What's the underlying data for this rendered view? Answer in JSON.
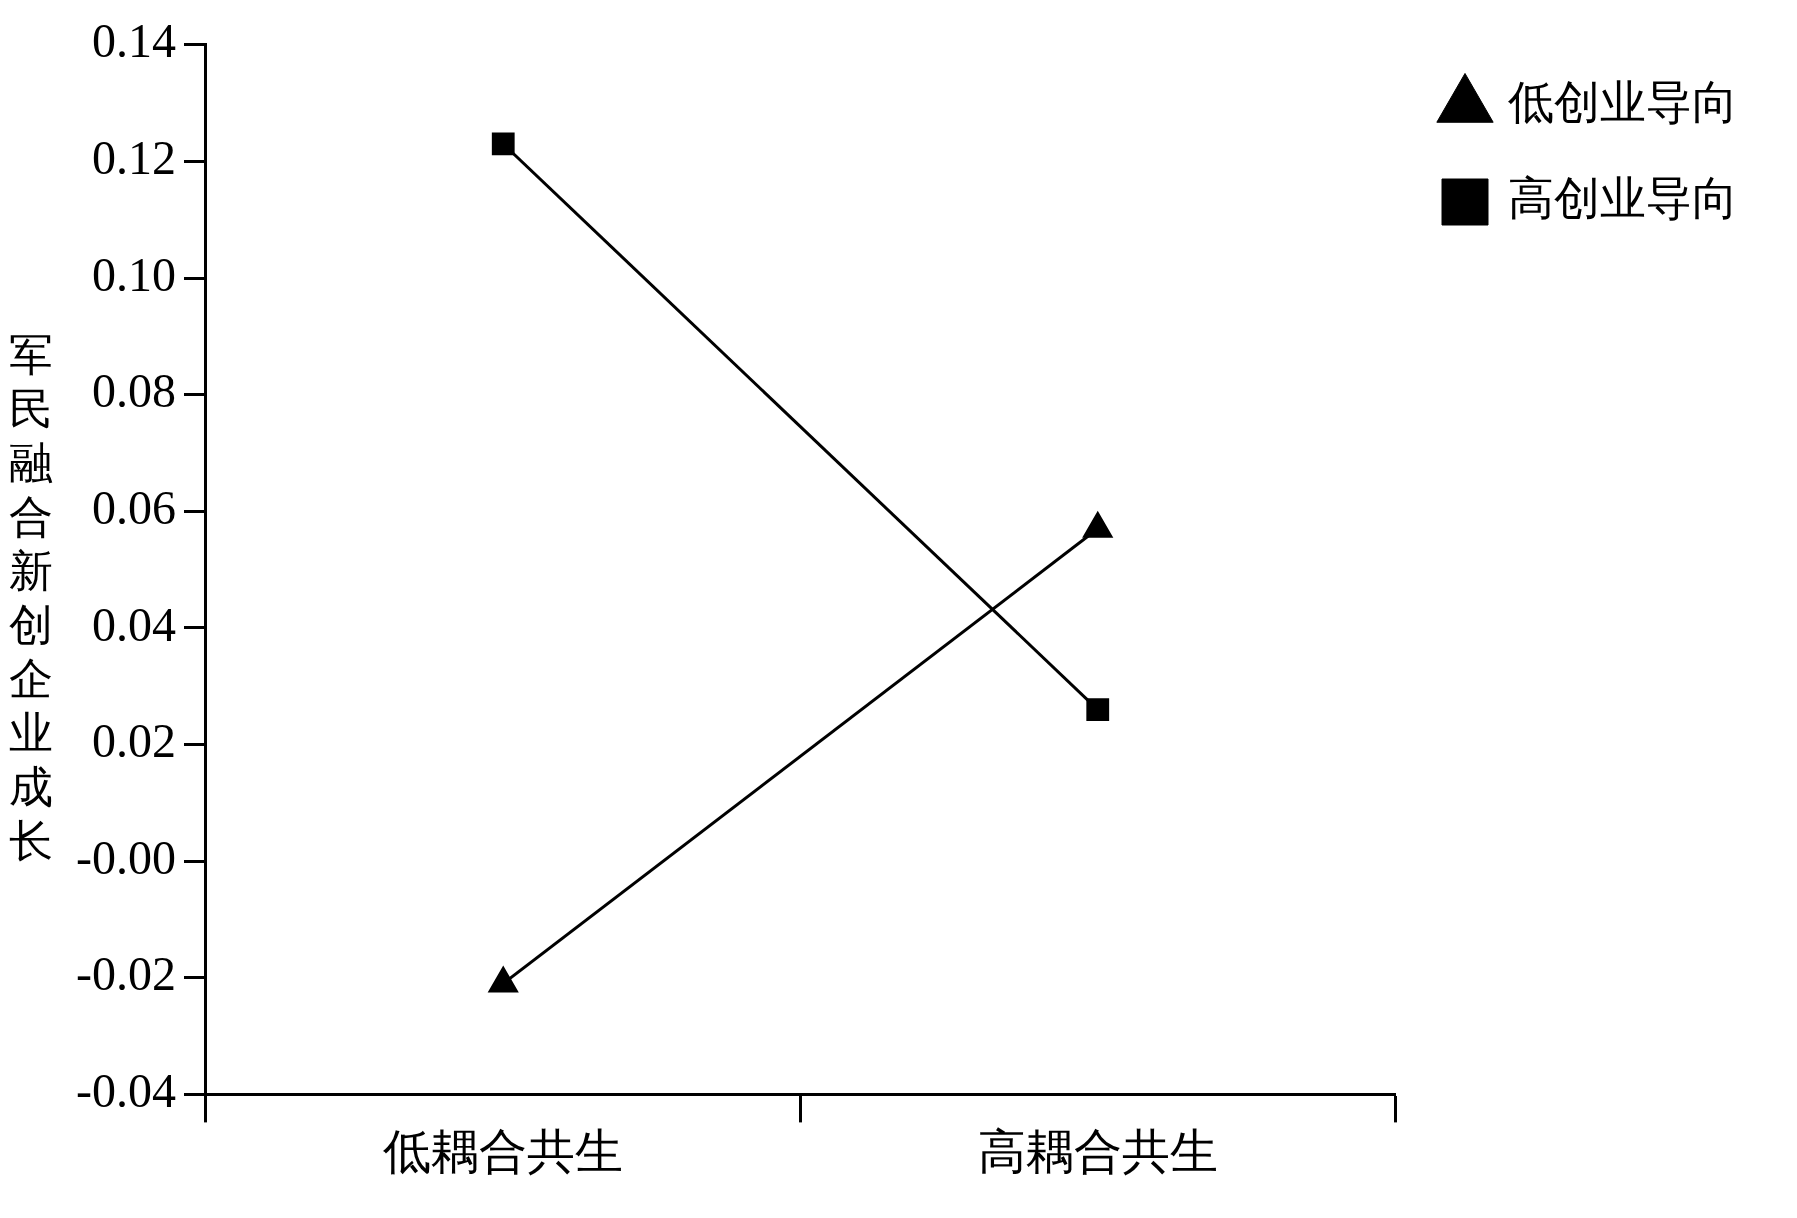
{
  "chart_data": {
    "type": "line",
    "ylabel": "军民融合新创企业成长",
    "categories": [
      "低耦合共生",
      "高耦合共生"
    ],
    "series": [
      {
        "name": "低创业导向",
        "color": "#000000",
        "marker": "triangle",
        "values": [
          -0.021,
          0.057
        ]
      },
      {
        "name": "高创业导向",
        "color": "#000000",
        "marker": "square",
        "values": [
          0.123,
          0.026
        ]
      }
    ],
    "ylim": [
      -0.04,
      0.14
    ],
    "yticks": [
      -0.04,
      -0.02,
      {
        "value": 0,
        "label": "-0.00"
      },
      0.02,
      0.04,
      0.06,
      0.08,
      {
        "value": 0.1,
        "label": "0.10"
      },
      0.12,
      0.14
    ],
    "grid": false,
    "legend": "top right",
    "line_style": "solid"
  }
}
